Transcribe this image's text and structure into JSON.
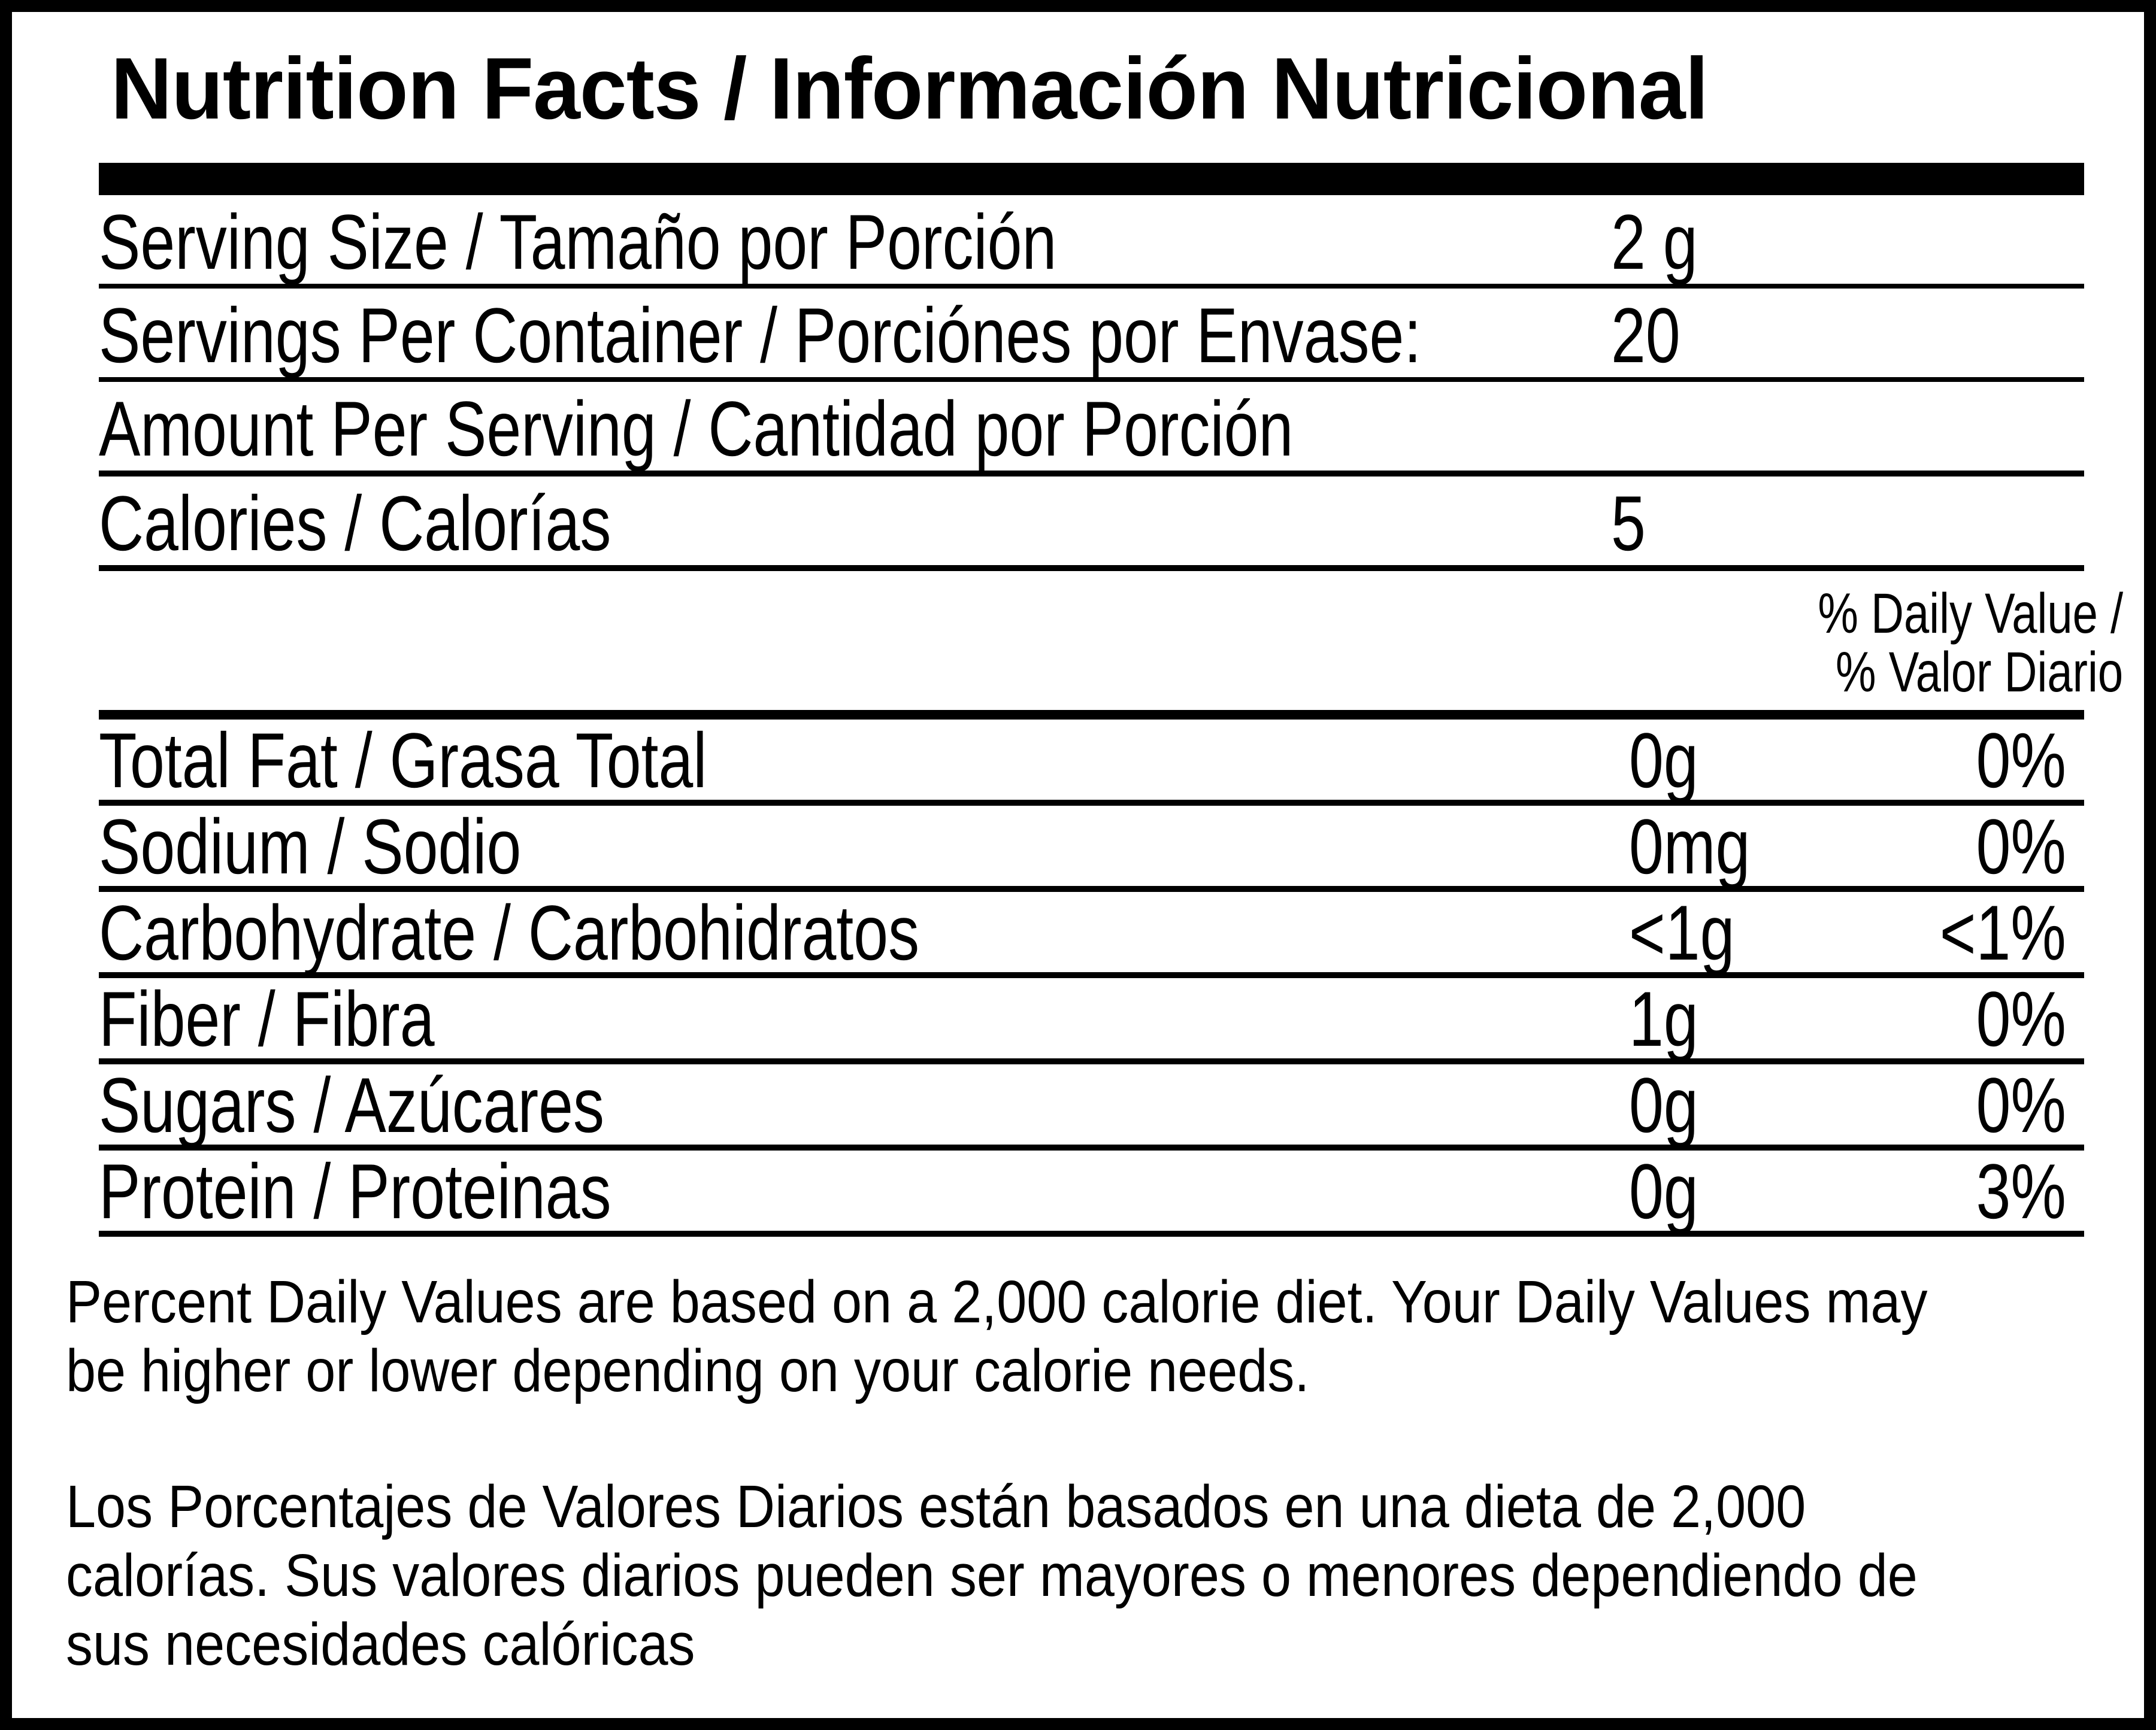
{
  "title": "Nutrition Facts / Información Nutricional",
  "serving_section": {
    "rows": [
      {
        "label": "Serving Size / Tamaño por Porción",
        "value": "2 g"
      },
      {
        "label": "Servings Per Container / Porciónes por Envase:",
        "value": "20"
      },
      {
        "label": "Amount Per Serving / Cantidad por Porción",
        "value": ""
      },
      {
        "label": "Calories / Calorías",
        "value": "5"
      }
    ]
  },
  "daily_value_header": {
    "line1": "% Daily Value /",
    "line2": "% Valor Diario"
  },
  "nutrients": [
    {
      "label": "Total Fat / Grasa Total",
      "amount": "0g",
      "daily_value": "0%"
    },
    {
      "label": "Sodium / Sodio",
      "amount": "0mg",
      "daily_value": "0%"
    },
    {
      "label": "Carbohydrate / Carbohidratos",
      "amount": "<1g",
      "daily_value": "<1%"
    },
    {
      "label": "Fiber / Fibra",
      "amount": "1g",
      "daily_value": "0%"
    },
    {
      "label": "Sugars / Azúcares",
      "amount": "0g",
      "daily_value": "0%"
    },
    {
      "label": "Protein / Proteinas",
      "amount": "0g",
      "daily_value": "3%"
    }
  ],
  "footnote_english": {
    "full_text": "Percent Daily Values are based on a 2,000 calorie diet. Your Daily Values may be higher or lower depending on your calorie needs.",
    "lines": [
      "Percent Daily Values are based on a 2,000 calorie diet. Your Daily Values may",
      "be higher or lower depending on your calorie needs."
    ]
  },
  "footnote_spanish": {
    "full_text": "Los Porcentajes de Valores Diarios están basados en una dieta de 2,000 calorías. Sus valores diarios pueden ser mayores o menores dependiendo de sus necesidades calóricas",
    "lines": [
      "Los Porcentajes de Valores Diarios están basados en una dieta de 2,000",
      "calorías. Sus valores diarios pueden ser mayores o menores dependiendo de",
      "sus necesidades calóricas"
    ]
  },
  "colors": {
    "text": "#000000",
    "background": "#ffffff",
    "border": "#000000"
  }
}
